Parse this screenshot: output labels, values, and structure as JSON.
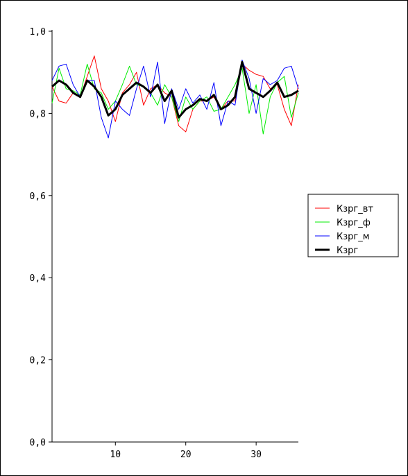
{
  "chart_data": {
    "type": "line",
    "title": "",
    "xlabel": "",
    "ylabel": "",
    "xlim": [
      1,
      36
    ],
    "ylim": [
      0,
      1
    ],
    "xticks": [
      10,
      20,
      30
    ],
    "xtick_labels": [
      "10",
      "20",
      "30"
    ],
    "yticks": [
      0,
      0.2,
      0.4,
      0.6,
      0.8,
      1.0
    ],
    "ytick_labels": [
      "0,0",
      "0,2",
      "0,4",
      "0,6",
      "0,8",
      "1,0"
    ],
    "grid": false,
    "legend_position": "right",
    "x": [
      1,
      2,
      3,
      4,
      5,
      6,
      7,
      8,
      9,
      10,
      11,
      12,
      13,
      14,
      15,
      16,
      17,
      18,
      19,
      20,
      21,
      22,
      23,
      24,
      25,
      26,
      27,
      28,
      29,
      30,
      31,
      32,
      33,
      34,
      35,
      36
    ],
    "series": [
      {
        "name": "Кзрг_вт",
        "color": "#ff0000",
        "width": 1,
        "values": [
          0.865,
          0.83,
          0.825,
          0.85,
          0.84,
          0.89,
          0.94,
          0.86,
          0.83,
          0.78,
          0.85,
          0.87,
          0.9,
          0.82,
          0.86,
          0.87,
          0.85,
          0.84,
          0.77,
          0.755,
          0.81,
          0.83,
          0.83,
          0.84,
          0.81,
          0.83,
          0.83,
          0.92,
          0.905,
          0.895,
          0.89,
          0.86,
          0.87,
          0.81,
          0.77,
          0.87
        ]
      },
      {
        "name": "Кзрг_ф",
        "color": "#00ee00",
        "width": 1,
        "values": [
          0.825,
          0.91,
          0.86,
          0.855,
          0.845,
          0.92,
          0.86,
          0.85,
          0.81,
          0.83,
          0.87,
          0.915,
          0.87,
          0.865,
          0.85,
          0.82,
          0.87,
          0.84,
          0.78,
          0.84,
          0.81,
          0.83,
          0.84,
          0.805,
          0.81,
          0.84,
          0.87,
          0.91,
          0.8,
          0.87,
          0.75,
          0.84,
          0.875,
          0.89,
          0.79,
          0.85
        ]
      },
      {
        "name": "Кзрг_м",
        "color": "#0000ff",
        "width": 1,
        "values": [
          0.88,
          0.915,
          0.92,
          0.87,
          0.84,
          0.88,
          0.88,
          0.79,
          0.74,
          0.83,
          0.81,
          0.795,
          0.86,
          0.915,
          0.84,
          0.925,
          0.775,
          0.86,
          0.81,
          0.86,
          0.825,
          0.845,
          0.81,
          0.875,
          0.77,
          0.83,
          0.82,
          0.93,
          0.885,
          0.8,
          0.885,
          0.87,
          0.88,
          0.91,
          0.915,
          0.86
        ]
      },
      {
        "name": "Кзрг",
        "color": "#000000",
        "width": 3,
        "values": [
          0.865,
          0.88,
          0.87,
          0.85,
          0.84,
          0.88,
          0.865,
          0.84,
          0.795,
          0.81,
          0.845,
          0.86,
          0.875,
          0.865,
          0.85,
          0.87,
          0.83,
          0.855,
          0.79,
          0.81,
          0.82,
          0.835,
          0.83,
          0.845,
          0.81,
          0.82,
          0.84,
          0.925,
          0.86,
          0.85,
          0.84,
          0.855,
          0.875,
          0.84,
          0.845,
          0.855
        ]
      }
    ]
  }
}
